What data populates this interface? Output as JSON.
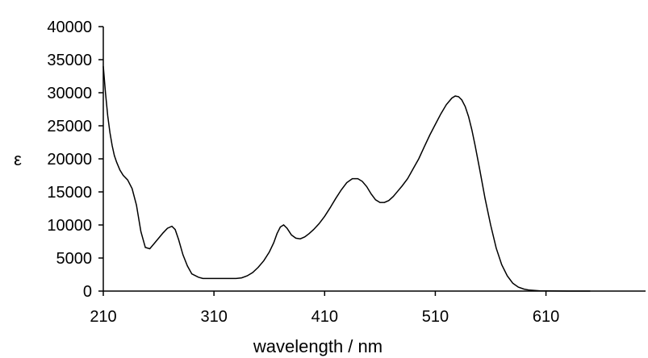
{
  "chart_data": {
    "type": "line",
    "title": "",
    "xlabel": "wavelength / nm",
    "ylabel": "ε",
    "xlim": [
      210,
      700
    ],
    "ylim": [
      0,
      40000
    ],
    "grid": false,
    "legend": "none",
    "x_ticks": [
      210,
      310,
      410,
      510,
      610
    ],
    "y_ticks": [
      0,
      5000,
      10000,
      15000,
      20000,
      25000,
      30000,
      35000,
      40000
    ],
    "x_tick_labels": [
      "210",
      "310",
      "410",
      "510",
      "610"
    ],
    "y_tick_labels": [
      "0",
      "5000",
      "10000",
      "15000",
      "20000",
      "25000",
      "30000",
      "35000",
      "40000"
    ],
    "series": [
      {
        "color": "#000000",
        "x": [
          210,
          212,
          214,
          216,
          218,
          220,
          222,
          225,
          228,
          232,
          236,
          240,
          244,
          248,
          252,
          256,
          260,
          264,
          268,
          272,
          275,
          278,
          282,
          286,
          290,
          296,
          300,
          310,
          320,
          330,
          335,
          340,
          345,
          350,
          355,
          360,
          364,
          367,
          370,
          373,
          376,
          380,
          384,
          388,
          392,
          396,
          400,
          405,
          410,
          415,
          420,
          425,
          430,
          435,
          440,
          444,
          448,
          452,
          456,
          460,
          464,
          468,
          472,
          476,
          480,
          485,
          490,
          495,
          500,
          505,
          510,
          515,
          520,
          525,
          528,
          531,
          534,
          537,
          540,
          543,
          546,
          550,
          555,
          560,
          565,
          570,
          575,
          580,
          585,
          590,
          595,
          600,
          605,
          610,
          620,
          630,
          640,
          650
        ],
        "y": [
          34000,
          30000,
          26500,
          24000,
          22000,
          20500,
          19500,
          18300,
          17500,
          16800,
          15500,
          13000,
          9000,
          6600,
          6400,
          7200,
          8000,
          8800,
          9500,
          9800,
          9300,
          7800,
          5500,
          3800,
          2600,
          2100,
          1900,
          1900,
          1900,
          1900,
          2000,
          2300,
          2800,
          3600,
          4600,
          5900,
          7300,
          8700,
          9700,
          10000,
          9500,
          8500,
          8000,
          7900,
          8200,
          8700,
          9300,
          10200,
          11300,
          12600,
          14000,
          15300,
          16400,
          17000,
          17000,
          16600,
          15800,
          14700,
          13800,
          13400,
          13400,
          13700,
          14300,
          15100,
          15900,
          17000,
          18500,
          20000,
          21800,
          23600,
          25200,
          26800,
          28200,
          29200,
          29500,
          29400,
          28900,
          27900,
          26400,
          24400,
          22000,
          18500,
          14000,
          10000,
          6500,
          4000,
          2300,
          1200,
          600,
          300,
          150,
          80,
          40,
          20,
          10,
          5,
          2,
          0
        ]
      }
    ]
  }
}
